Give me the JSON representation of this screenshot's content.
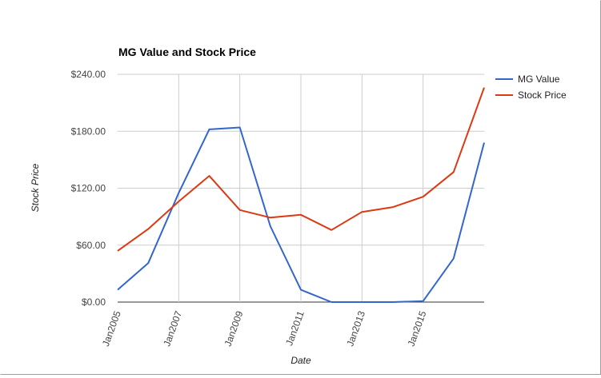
{
  "chart_data": {
    "type": "line",
    "title": "MG Value and Stock Price",
    "xlabel": "Date",
    "ylabel": "Stock Price",
    "x_ticks": [
      "Jan2005",
      "Jan2007",
      "Jan2009",
      "Jan2011",
      "Jan2013",
      "Jan2015"
    ],
    "x": [
      2005,
      2006,
      2007,
      2008,
      2009,
      2010,
      2011,
      2012,
      2013,
      2014,
      2015,
      2016,
      2017
    ],
    "xlim": [
      2005,
      2017
    ],
    "ylim": [
      0,
      240
    ],
    "y_ticks": [
      "$0.00",
      "$60.00",
      "$120.00",
      "$180.00",
      "$240.00"
    ],
    "y_tick_values": [
      0,
      60,
      120,
      180,
      240
    ],
    "grid": true,
    "legend_position": "right",
    "series": [
      {
        "name": "MG Value",
        "color": "#3366cc",
        "values": [
          13,
          41,
          115,
          182,
          184,
          80,
          13,
          0,
          0,
          0,
          1,
          46,
          168
        ]
      },
      {
        "name": "Stock Price",
        "color": "#dc3912",
        "values": [
          54,
          77,
          106,
          133,
          97,
          89,
          92,
          76,
          95,
          100,
          111,
          137,
          226
        ]
      }
    ]
  }
}
